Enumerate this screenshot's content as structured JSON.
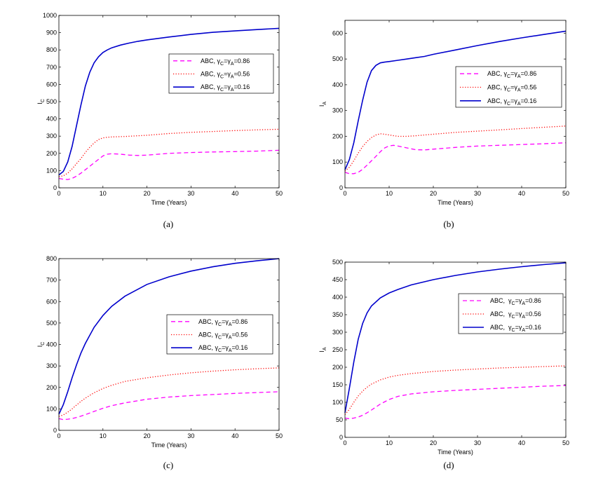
{
  "colors": {
    "series_086": "#ff00ff",
    "series_056": "#ff0000",
    "series_016": "#0000cc"
  },
  "chart_data": [
    {
      "type": "line",
      "panel": "(a)",
      "xlabel": "Time (Years)",
      "ylabel": "I",
      "ylabel_sub": "C",
      "xlim": [
        0,
        50
      ],
      "ylim": [
        0,
        1000
      ],
      "xticks": [
        0,
        10,
        20,
        30,
        40,
        50
      ],
      "yticks": [
        0,
        100,
        200,
        300,
        400,
        500,
        600,
        700,
        800,
        900,
        1000
      ],
      "legend_position": "upper-right",
      "series": [
        {
          "name": "ABC, γC=γA=0.86",
          "label_main": "ABC, γ",
          "label_val": "=0.86",
          "style": "dashed",
          "color_key": "series_086",
          "x": [
            0,
            1,
            2,
            3,
            4,
            5,
            6,
            7,
            8,
            9,
            10,
            11,
            12,
            14,
            16,
            18,
            20,
            25,
            30,
            35,
            40,
            45,
            50
          ],
          "y": [
            55,
            50,
            48,
            55,
            68,
            85,
            105,
            125,
            145,
            165,
            185,
            195,
            198,
            195,
            190,
            188,
            190,
            200,
            205,
            208,
            210,
            213,
            218
          ]
        },
        {
          "name": "ABC, γC=γA=0.56",
          "label_main": "ABC, γ",
          "label_val": "=0.56",
          "style": "dotted",
          "color_key": "series_056",
          "x": [
            0,
            1,
            2,
            3,
            4,
            5,
            6,
            7,
            8,
            9,
            10,
            11,
            12,
            15,
            20,
            25,
            30,
            35,
            40,
            45,
            50
          ],
          "y": [
            65,
            70,
            85,
            110,
            140,
            170,
            205,
            235,
            260,
            280,
            290,
            293,
            295,
            298,
            305,
            315,
            322,
            327,
            332,
            336,
            340
          ]
        },
        {
          "name": "ABC, γC=γA=0.16",
          "label_main": "ABC, γ",
          "label_val": "=0.16",
          "style": "solid",
          "color_key": "series_016",
          "x": [
            0,
            1,
            2,
            3,
            4,
            5,
            6,
            7,
            8,
            9,
            10,
            11,
            12,
            14,
            16,
            18,
            20,
            25,
            30,
            35,
            40,
            45,
            50
          ],
          "y": [
            75,
            95,
            150,
            240,
            360,
            480,
            590,
            670,
            725,
            760,
            785,
            800,
            812,
            828,
            840,
            850,
            858,
            875,
            890,
            902,
            910,
            918,
            925
          ]
        }
      ]
    },
    {
      "type": "line",
      "panel": "(b)",
      "xlabel": "Time (Years)",
      "ylabel": "I",
      "ylabel_sub": "A",
      "xlim": [
        0,
        50
      ],
      "ylim": [
        0,
        650
      ],
      "xticks": [
        0,
        10,
        20,
        30,
        40,
        50
      ],
      "yticks": [
        0,
        100,
        200,
        300,
        400,
        500,
        600
      ],
      "legend_position": "upper-right",
      "series": [
        {
          "name": "ABC, γC=γA=0.86",
          "label_main": "ABC, γ",
          "label_val": "=0.86",
          "style": "dashed",
          "color_key": "series_086",
          "x": [
            0,
            1,
            2,
            3,
            4,
            5,
            6,
            7,
            8,
            9,
            10,
            11,
            12,
            14,
            16,
            18,
            20,
            25,
            30,
            35,
            40,
            45,
            50
          ],
          "y": [
            60,
            55,
            55,
            60,
            72,
            88,
            105,
            122,
            140,
            155,
            163,
            165,
            162,
            155,
            148,
            147,
            150,
            157,
            162,
            165,
            168,
            171,
            175
          ]
        },
        {
          "name": "ABC, γC=γA=0.56",
          "label_main": "ABC, γ",
          "label_val": "=0.56",
          "style": "dotted",
          "color_key": "series_056",
          "x": [
            0,
            1,
            2,
            3,
            4,
            5,
            6,
            7,
            8,
            9,
            10,
            12,
            14,
            16,
            18,
            20,
            25,
            30,
            35,
            40,
            45,
            50
          ],
          "y": [
            65,
            80,
            105,
            135,
            160,
            180,
            195,
            205,
            210,
            208,
            205,
            200,
            200,
            202,
            205,
            208,
            215,
            220,
            225,
            230,
            235,
            240
          ]
        },
        {
          "name": "ABC, γC=γA=0.16",
          "label_main": "ABC, γ",
          "label_val": "=0.16",
          "style": "solid",
          "color_key": "series_016",
          "x": [
            0,
            1,
            2,
            3,
            4,
            5,
            6,
            7,
            8,
            9,
            10,
            12,
            14,
            16,
            18,
            20,
            25,
            30,
            35,
            40,
            45,
            50
          ],
          "y": [
            70,
            110,
            175,
            260,
            340,
            410,
            455,
            475,
            485,
            488,
            490,
            495,
            500,
            505,
            510,
            518,
            535,
            552,
            568,
            582,
            595,
            608
          ]
        }
      ]
    },
    {
      "type": "line",
      "panel": "(c)",
      "xlabel": "Time (Years)",
      "ylabel": "I",
      "ylabel_sub": "C",
      "xlim": [
        0,
        50
      ],
      "ylim": [
        0,
        800
      ],
      "xticks": [
        0,
        10,
        20,
        30,
        40,
        50
      ],
      "yticks": [
        0,
        100,
        200,
        300,
        400,
        500,
        600,
        700,
        800
      ],
      "legend_position": "middle-right",
      "series": [
        {
          "name": "ABC, γC=γA=0.86",
          "label_main": "ABC, γ",
          "label_val": "=0.86",
          "style": "dashed",
          "color_key": "series_086",
          "x": [
            0,
            1,
            2,
            3,
            4,
            5,
            6,
            8,
            10,
            12,
            15,
            20,
            25,
            30,
            35,
            40,
            45,
            50
          ],
          "y": [
            55,
            50,
            52,
            55,
            60,
            66,
            73,
            88,
            103,
            115,
            128,
            145,
            155,
            162,
            167,
            172,
            176,
            180
          ]
        },
        {
          "name": "ABC, γC=γA=0.56",
          "label_main": "ABC, γ",
          "label_val": "=0.56",
          "style": "dotted",
          "color_key": "series_056",
          "x": [
            0,
            1,
            2,
            3,
            4,
            5,
            6,
            8,
            10,
            12,
            15,
            20,
            25,
            30,
            35,
            40,
            45,
            50
          ],
          "y": [
            65,
            72,
            85,
            100,
            118,
            135,
            150,
            175,
            195,
            210,
            228,
            245,
            258,
            268,
            276,
            282,
            287,
            291
          ]
        },
        {
          "name": "ABC, γC=γA=0.16",
          "label_main": "ABC, γ",
          "label_val": "=0.16",
          "style": "solid",
          "color_key": "series_016",
          "x": [
            0,
            1,
            2,
            3,
            4,
            5,
            6,
            8,
            10,
            12,
            15,
            20,
            25,
            30,
            35,
            40,
            45,
            50
          ],
          "y": [
            75,
            120,
            180,
            245,
            305,
            360,
            405,
            480,
            535,
            578,
            625,
            680,
            715,
            742,
            762,
            778,
            790,
            800
          ]
        }
      ]
    },
    {
      "type": "line",
      "panel": "(d)",
      "xlabel": "Time (Years)",
      "ylabel": "I",
      "ylabel_sub": "A",
      "xlim": [
        0,
        50
      ],
      "ylim": [
        0,
        500
      ],
      "xticks": [
        0,
        10,
        20,
        30,
        40,
        50
      ],
      "yticks": [
        0,
        50,
        100,
        150,
        200,
        250,
        300,
        350,
        400,
        450,
        500
      ],
      "legend_position": "upper-right",
      "legend_gap": true,
      "series": [
        {
          "name": "ABC, γC=γA=0.86",
          "label_main": "ABC, γ",
          "label_val": "=0.86",
          "style": "dashed",
          "color_key": "series_086",
          "x": [
            0,
            1,
            2,
            3,
            4,
            5,
            6,
            8,
            10,
            12,
            15,
            20,
            25,
            30,
            35,
            40,
            45,
            50
          ],
          "y": [
            55,
            53,
            55,
            58,
            63,
            70,
            78,
            95,
            108,
            117,
            124,
            130,
            134,
            137,
            140,
            143,
            146,
            148
          ]
        },
        {
          "name": "ABC, γC=γA=0.56",
          "label_main": "ABC, γ",
          "label_val": "=0.56",
          "style": "dotted",
          "color_key": "series_056",
          "x": [
            0,
            1,
            2,
            3,
            4,
            5,
            6,
            8,
            10,
            12,
            15,
            20,
            25,
            30,
            35,
            40,
            45,
            50
          ],
          "y": [
            65,
            80,
            100,
            118,
            132,
            143,
            152,
            164,
            172,
            177,
            182,
            188,
            192,
            195,
            198,
            200,
            202,
            204
          ]
        },
        {
          "name": "ABC, γC=γA=0.16",
          "label_main": "ABC, γ",
          "label_val": "=0.16",
          "style": "solid",
          "color_key": "series_016",
          "x": [
            0,
            1,
            2,
            3,
            4,
            5,
            6,
            8,
            10,
            12,
            15,
            20,
            25,
            30,
            35,
            40,
            45,
            50
          ],
          "y": [
            70,
            140,
            215,
            280,
            325,
            355,
            375,
            398,
            412,
            422,
            435,
            450,
            462,
            472,
            480,
            487,
            493,
            498
          ]
        }
      ]
    }
  ]
}
